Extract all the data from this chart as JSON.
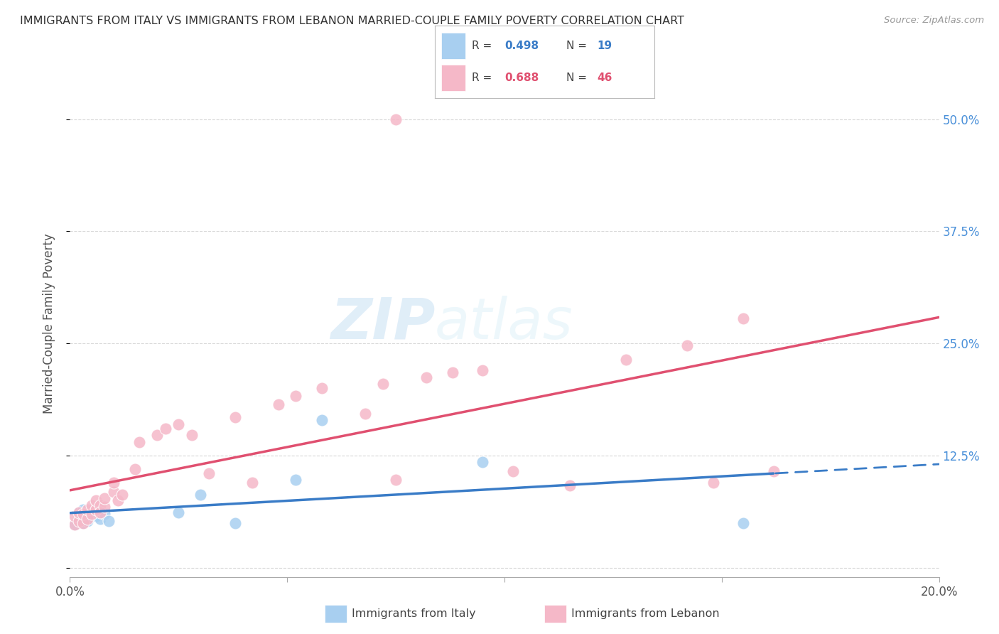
{
  "title": "IMMIGRANTS FROM ITALY VS IMMIGRANTS FROM LEBANON MARRIED-COUPLE FAMILY POVERTY CORRELATION CHART",
  "source": "Source: ZipAtlas.com",
  "ylabel": "Married-Couple Family Poverty",
  "xlim": [
    0.0,
    0.2
  ],
  "ylim": [
    -0.01,
    0.555
  ],
  "ytick_positions": [
    0.0,
    0.125,
    0.25,
    0.375,
    0.5
  ],
  "ytick_labels": [
    "",
    "12.5%",
    "25.0%",
    "37.5%",
    "50.0%"
  ],
  "italy_color": "#a8cff0",
  "lebanon_color": "#f5b8c8",
  "italy_line_color": "#3a7cc7",
  "lebanon_line_color": "#e05070",
  "italy_R": 0.498,
  "italy_N": 19,
  "lebanon_R": 0.688,
  "lebanon_N": 46,
  "watermark_zip": "ZIP",
  "watermark_atlas": "atlas",
  "background_color": "#ffffff",
  "grid_color": "#d8d8d8",
  "italy_x": [
    0.001,
    0.002,
    0.002,
    0.003,
    0.003,
    0.004,
    0.004,
    0.005,
    0.006,
    0.007,
    0.008,
    0.009,
    0.025,
    0.03,
    0.038,
    0.052,
    0.058,
    0.095,
    0.155
  ],
  "italy_y": [
    0.048,
    0.055,
    0.062,
    0.05,
    0.065,
    0.058,
    0.052,
    0.062,
    0.058,
    0.055,
    0.06,
    0.052,
    0.062,
    0.082,
    0.05,
    0.098,
    0.165,
    0.118,
    0.05
  ],
  "lebanon_x": [
    0.001,
    0.001,
    0.002,
    0.002,
    0.003,
    0.003,
    0.004,
    0.004,
    0.005,
    0.005,
    0.006,
    0.006,
    0.007,
    0.007,
    0.008,
    0.008,
    0.01,
    0.01,
    0.011,
    0.012,
    0.015,
    0.016,
    0.02,
    0.022,
    0.025,
    0.028,
    0.032,
    0.038,
    0.042,
    0.048,
    0.052,
    0.058,
    0.068,
    0.072,
    0.075,
    0.082,
    0.088,
    0.095,
    0.102,
    0.115,
    0.128,
    0.142,
    0.075,
    0.148,
    0.155,
    0.162
  ],
  "lebanon_y": [
    0.048,
    0.058,
    0.052,
    0.062,
    0.05,
    0.06,
    0.055,
    0.065,
    0.06,
    0.07,
    0.065,
    0.075,
    0.07,
    0.062,
    0.068,
    0.078,
    0.085,
    0.095,
    0.075,
    0.082,
    0.11,
    0.14,
    0.148,
    0.155,
    0.16,
    0.148,
    0.105,
    0.168,
    0.095,
    0.182,
    0.192,
    0.2,
    0.172,
    0.205,
    0.098,
    0.212,
    0.218,
    0.22,
    0.108,
    0.092,
    0.232,
    0.248,
    0.5,
    0.095,
    0.278,
    0.108
  ]
}
